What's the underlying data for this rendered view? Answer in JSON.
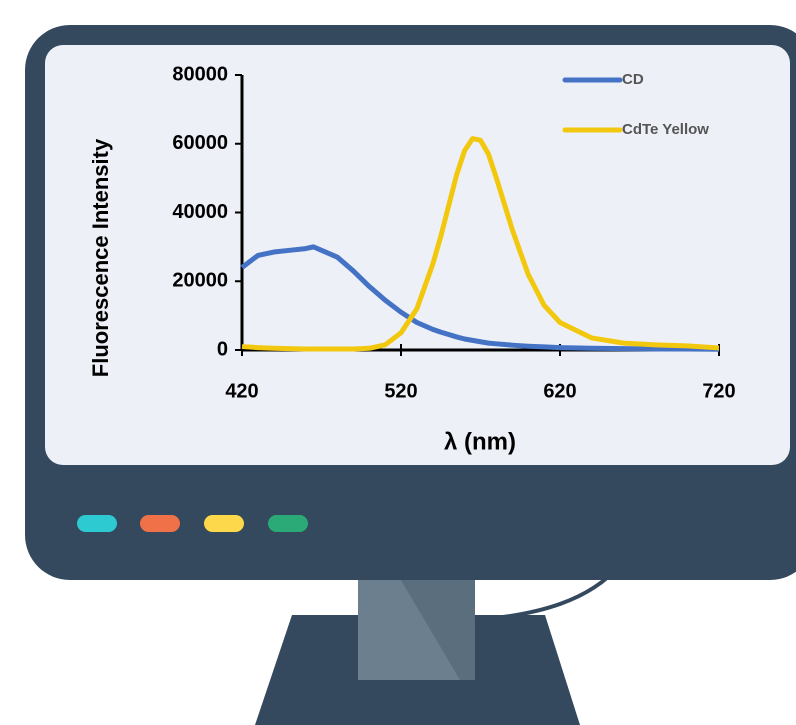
{
  "chart_data": {
    "type": "line",
    "x_label": "λ (nm)",
    "y_label": "Fluorescence Intensity",
    "x": [
      420,
      430,
      440,
      450,
      460,
      465,
      470,
      480,
      490,
      500,
      510,
      520,
      530,
      540,
      545,
      550,
      555,
      560,
      565,
      570,
      575,
      580,
      590,
      600,
      610,
      620,
      640,
      660,
      680,
      700,
      720
    ],
    "series": [
      {
        "name": "CD",
        "color": "#4472c4",
        "values": [
          24000,
          27500,
          28500,
          29000,
          29500,
          30000,
          29000,
          27000,
          23000,
          18500,
          14500,
          11000,
          8000,
          6000,
          5200,
          4500,
          3800,
          3200,
          2800,
          2400,
          2000,
          1800,
          1400,
          1100,
          900,
          700,
          500,
          400,
          300,
          300,
          200
        ]
      },
      {
        "name": "CdTe Yellow",
        "color": "#f2c80f",
        "values": [
          1000,
          700,
          500,
          400,
          300,
          300,
          300,
          300,
          300,
          500,
          1500,
          5000,
          12000,
          25000,
          33000,
          42000,
          51000,
          58000,
          61500,
          61000,
          57000,
          50000,
          35000,
          22000,
          13000,
          8000,
          3500,
          2000,
          1500,
          1200,
          600
        ]
      }
    ],
    "xlim": [
      420,
      720
    ],
    "xticks": [
      420,
      520,
      620,
      720
    ],
    "ylim": [
      0,
      80000
    ],
    "yticks": [
      0,
      20000,
      40000,
      60000,
      80000
    ],
    "legend": "upper right"
  }
}
